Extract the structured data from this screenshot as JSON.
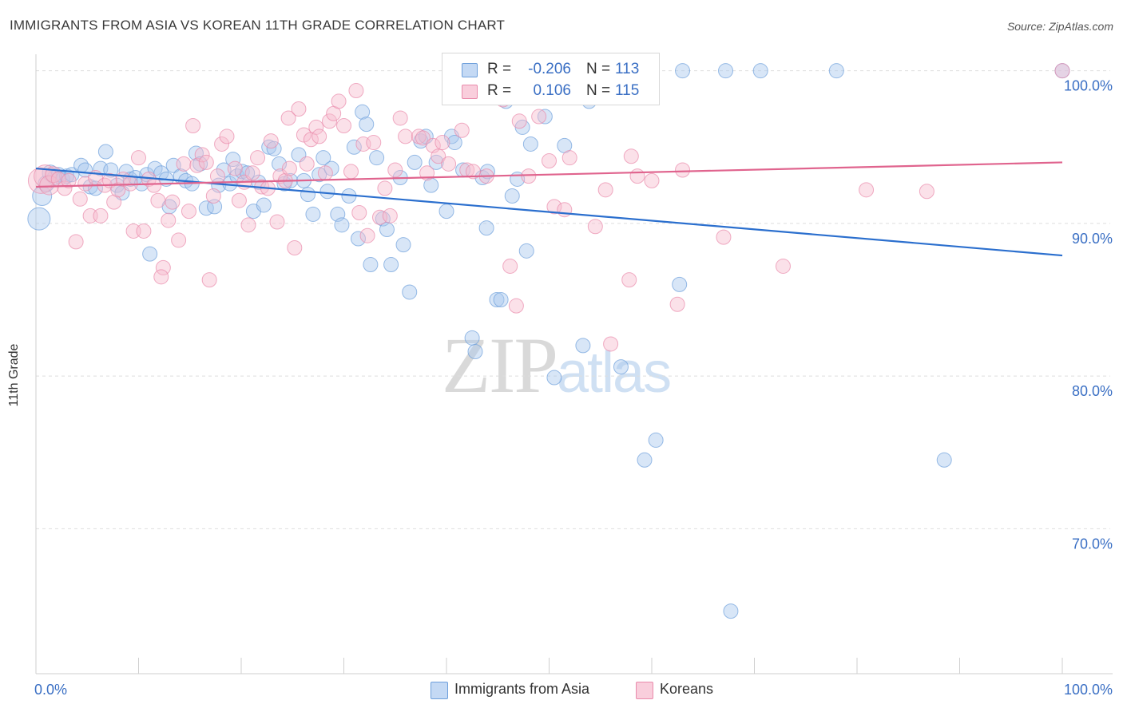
{
  "title": "IMMIGRANTS FROM ASIA VS KOREAN 11TH GRADE CORRELATION CHART",
  "source": "Source: ZipAtlas.com",
  "watermark": {
    "zip": "ZIP",
    "atlas": "atlas"
  },
  "colors": {
    "blue_fill": "#a9c8ee",
    "blue_stroke": "#6d9fdb",
    "blue_line": "#2b6fce",
    "pink_fill": "#f6bccf",
    "pink_stroke": "#e98aab",
    "pink_line": "#e0648e",
    "grid": "#dedede",
    "tick_label": "#3a6fc4"
  },
  "legend": {
    "rows": [
      {
        "r_label": "R =",
        "r_value": "-0.206",
        "n_label": "N =",
        "n_value": "113"
      },
      {
        "r_label": "R =",
        "r_value": "0.106",
        "n_label": "N =",
        "n_value": "115"
      }
    ]
  },
  "bottom_legend": [
    "Immigrants from Asia",
    "Koreans"
  ],
  "chart_data": {
    "type": "scatter",
    "xlabel": "",
    "ylabel": "11th Grade",
    "xlim": [
      0,
      100
    ],
    "ylim": [
      60.5,
      101.5
    ],
    "x_tick_labels": {
      "min": "0.0%",
      "max": "100.0%"
    },
    "y_ticks": [
      100,
      90,
      80,
      70
    ],
    "y_tick_labels": [
      "100.0%",
      "90.0%",
      "80.0%",
      "70.0%"
    ],
    "grid": true,
    "series": [
      {
        "name": "Immigrants from Asia",
        "r": -0.206,
        "n": 113,
        "trend": {
          "x": [
            0,
            100
          ],
          "y": [
            93.6,
            87.9
          ]
        },
        "points": [
          [
            0.3,
            90.3,
            14
          ],
          [
            0.6,
            91.8,
            12
          ],
          [
            1.0,
            92.6,
            10
          ],
          [
            1.4,
            93.3,
            10
          ],
          [
            1.8,
            93.0,
            9
          ],
          [
            2.2,
            93.2,
            9
          ],
          [
            2.6,
            92.9,
            9
          ],
          [
            3.0,
            93.1,
            9
          ],
          [
            3.5,
            93.2,
            9
          ],
          [
            4.4,
            93.8,
            9
          ],
          [
            4.8,
            93.5,
            9
          ],
          [
            5.3,
            92.4,
            9
          ],
          [
            5.8,
            92.3,
            9
          ],
          [
            6.3,
            93.6,
            9
          ],
          [
            6.8,
            94.7,
            9
          ],
          [
            7.3,
            93.5,
            9
          ],
          [
            7.9,
            92.5,
            9
          ],
          [
            8.4,
            92.0,
            9
          ],
          [
            8.8,
            93.4,
            9
          ],
          [
            9.2,
            92.9,
            9
          ],
          [
            9.7,
            93.0,
            9
          ],
          [
            10.3,
            92.6,
            9
          ],
          [
            10.8,
            93.2,
            9
          ],
          [
            11.1,
            88.0,
            9
          ],
          [
            11.6,
            93.6,
            9
          ],
          [
            12.2,
            93.3,
            9
          ],
          [
            12.7,
            92.9,
            9
          ],
          [
            13.0,
            91.1,
            9
          ],
          [
            13.4,
            93.8,
            9
          ],
          [
            14.1,
            93.1,
            9
          ],
          [
            14.6,
            92.8,
            9
          ],
          [
            15.2,
            92.6,
            9
          ],
          [
            15.6,
            94.6,
            9
          ],
          [
            16.0,
            93.9,
            9
          ],
          [
            16.6,
            91.0,
            9
          ],
          [
            17.4,
            91.1,
            9
          ],
          [
            17.8,
            92.5,
            9
          ],
          [
            18.3,
            93.5,
            9
          ],
          [
            18.9,
            92.6,
            9
          ],
          [
            19.2,
            94.2,
            9
          ],
          [
            19.6,
            93.1,
            9
          ],
          [
            20.1,
            93.4,
            9
          ],
          [
            20.6,
            93.3,
            9
          ],
          [
            21.2,
            90.8,
            9
          ],
          [
            21.7,
            92.7,
            9
          ],
          [
            22.2,
            91.2,
            9
          ],
          [
            22.7,
            95.0,
            9
          ],
          [
            23.2,
            94.9,
            9
          ],
          [
            23.7,
            93.9,
            9
          ],
          [
            24.2,
            92.6,
            9
          ],
          [
            24.8,
            92.8,
            9
          ],
          [
            25.6,
            94.5,
            9
          ],
          [
            26.1,
            92.8,
            9
          ],
          [
            26.5,
            91.9,
            9
          ],
          [
            27.0,
            90.6,
            9
          ],
          [
            27.6,
            93.2,
            9
          ],
          [
            28.0,
            94.3,
            9
          ],
          [
            28.4,
            92.1,
            9
          ],
          [
            28.8,
            93.6,
            9
          ],
          [
            29.4,
            90.6,
            9
          ],
          [
            29.8,
            89.9,
            9
          ],
          [
            30.5,
            91.8,
            9
          ],
          [
            31.0,
            95.0,
            9
          ],
          [
            31.4,
            89.0,
            9
          ],
          [
            31.8,
            97.3,
            9
          ],
          [
            32.2,
            96.5,
            9
          ],
          [
            32.6,
            87.3,
            9
          ],
          [
            33.2,
            94.3,
            9
          ],
          [
            33.8,
            90.3,
            9
          ],
          [
            34.2,
            89.6,
            9
          ],
          [
            34.6,
            87.3,
            9
          ],
          [
            35.5,
            93.0,
            9
          ],
          [
            35.8,
            88.6,
            9
          ],
          [
            36.4,
            85.5,
            9
          ],
          [
            36.9,
            94.0,
            9
          ],
          [
            37.5,
            95.4,
            9
          ],
          [
            38.0,
            95.7,
            9
          ],
          [
            38.5,
            92.5,
            9
          ],
          [
            39.0,
            94.0,
            9
          ],
          [
            40.0,
            90.8,
            9
          ],
          [
            40.5,
            95.7,
            9
          ],
          [
            40.8,
            95.3,
            9
          ],
          [
            41.6,
            93.5,
            9
          ],
          [
            42.5,
            82.5,
            9
          ],
          [
            42.8,
            81.6,
            9
          ],
          [
            43.5,
            93.0,
            9
          ],
          [
            43.9,
            89.7,
            9
          ],
          [
            44.0,
            93.4,
            9
          ],
          [
            44.9,
            85.0,
            9
          ],
          [
            45.3,
            85.0,
            9
          ],
          [
            45.8,
            98.0,
            9
          ],
          [
            46.4,
            91.8,
            9
          ],
          [
            46.9,
            92.9,
            9
          ],
          [
            47.4,
            96.3,
            9
          ],
          [
            47.8,
            88.2,
            9
          ],
          [
            48.2,
            95.2,
            9
          ],
          [
            49.6,
            97.0,
            9
          ],
          [
            50.5,
            79.9,
            9
          ],
          [
            51.5,
            95.1,
            9
          ],
          [
            53.3,
            82.0,
            9
          ],
          [
            52.0,
            100.0,
            9
          ],
          [
            53.9,
            98.0,
            9
          ],
          [
            57.0,
            80.6,
            9
          ],
          [
            59.3,
            74.5,
            9
          ],
          [
            60.4,
            75.8,
            9
          ],
          [
            62.7,
            86.0,
            9
          ],
          [
            63.0,
            100.0,
            9
          ],
          [
            67.2,
            100.0,
            9
          ],
          [
            70.6,
            100.0,
            9
          ],
          [
            67.7,
            64.6,
            9
          ],
          [
            78.0,
            100.0,
            9
          ],
          [
            88.5,
            74.5,
            9
          ],
          [
            100.0,
            100.0,
            9
          ]
        ]
      },
      {
        "name": "Koreans",
        "r": 0.106,
        "n": 115,
        "trend": {
          "x": [
            0,
            100
          ],
          "y": [
            92.4,
            94.0
          ]
        },
        "points": [
          [
            0.5,
            92.8,
            16
          ],
          [
            0.9,
            93.1,
            14
          ],
          [
            1.3,
            92.5,
            12
          ],
          [
            1.7,
            93.2,
            10
          ],
          [
            2.2,
            92.9,
            9
          ],
          [
            2.8,
            92.3,
            9
          ],
          [
            3.2,
            92.8,
            9
          ],
          [
            3.9,
            88.8,
            9
          ],
          [
            4.3,
            91.6,
            9
          ],
          [
            4.8,
            92.6,
            9
          ],
          [
            5.3,
            90.5,
            9
          ],
          [
            5.8,
            93.0,
            9
          ],
          [
            6.3,
            90.5,
            9
          ],
          [
            6.7,
            92.5,
            9
          ],
          [
            7.2,
            92.8,
            9
          ],
          [
            7.6,
            91.4,
            9
          ],
          [
            8.0,
            92.2,
            9
          ],
          [
            8.5,
            92.9,
            9
          ],
          [
            9.2,
            92.6,
            9
          ],
          [
            9.5,
            89.5,
            9
          ],
          [
            10.0,
            94.3,
            9
          ],
          [
            10.5,
            89.5,
            9
          ],
          [
            11.0,
            92.9,
            9
          ],
          [
            11.5,
            92.5,
            9
          ],
          [
            11.9,
            91.5,
            9
          ],
          [
            12.4,
            87.1,
            9
          ],
          [
            12.2,
            86.5,
            9
          ],
          [
            12.9,
            90.2,
            9
          ],
          [
            13.3,
            91.4,
            9
          ],
          [
            13.9,
            88.9,
            9
          ],
          [
            14.4,
            93.9,
            9
          ],
          [
            14.9,
            90.8,
            9
          ],
          [
            15.3,
            96.4,
            9
          ],
          [
            15.7,
            93.8,
            9
          ],
          [
            16.2,
            94.5,
            9
          ],
          [
            16.6,
            94.0,
            9
          ],
          [
            16.9,
            86.3,
            9
          ],
          [
            17.3,
            91.8,
            9
          ],
          [
            17.7,
            93.1,
            9
          ],
          [
            18.1,
            95.2,
            9
          ],
          [
            18.6,
            95.7,
            9
          ],
          [
            19.4,
            93.6,
            9
          ],
          [
            19.8,
            91.5,
            9
          ],
          [
            20.3,
            92.7,
            9
          ],
          [
            20.7,
            89.9,
            9
          ],
          [
            21.1,
            93.3,
            9
          ],
          [
            21.6,
            94.3,
            9
          ],
          [
            22.0,
            92.4,
            9
          ],
          [
            22.6,
            92.3,
            9
          ],
          [
            22.9,
            95.4,
            9
          ],
          [
            23.5,
            90.1,
            9
          ],
          [
            23.8,
            93.1,
            9
          ],
          [
            24.3,
            92.8,
            9
          ],
          [
            24.7,
            93.6,
            9
          ],
          [
            24.6,
            96.9,
            9
          ],
          [
            25.2,
            88.4,
            9
          ],
          [
            25.6,
            97.5,
            9
          ],
          [
            26.1,
            95.8,
            9
          ],
          [
            26.4,
            93.9,
            9
          ],
          [
            26.8,
            95.5,
            9
          ],
          [
            27.3,
            96.3,
            9
          ],
          [
            27.6,
            95.7,
            9
          ],
          [
            28.2,
            93.3,
            9
          ],
          [
            28.6,
            96.7,
            9
          ],
          [
            29.0,
            97.2,
            9
          ],
          [
            29.5,
            98.0,
            9
          ],
          [
            30.0,
            96.4,
            9
          ],
          [
            30.7,
            93.4,
            9
          ],
          [
            31.2,
            98.7,
            9
          ],
          [
            31.5,
            90.7,
            9
          ],
          [
            31.9,
            95.2,
            9
          ],
          [
            32.3,
            89.2,
            9
          ],
          [
            32.9,
            95.3,
            9
          ],
          [
            33.5,
            90.4,
            9
          ],
          [
            34.0,
            92.3,
            9
          ],
          [
            34.5,
            90.5,
            9
          ],
          [
            35.0,
            93.5,
            9
          ],
          [
            35.5,
            96.9,
            9
          ],
          [
            36.0,
            95.7,
            9
          ],
          [
            37.3,
            95.7,
            9
          ],
          [
            37.7,
            95.6,
            9
          ],
          [
            38.1,
            93.3,
            9
          ],
          [
            38.7,
            95.1,
            9
          ],
          [
            39.2,
            94.4,
            9
          ],
          [
            39.6,
            95.3,
            9
          ],
          [
            40.2,
            93.9,
            9
          ],
          [
            40.6,
            100.0,
            9
          ],
          [
            41.5,
            96.1,
            9
          ],
          [
            42.0,
            93.5,
            9
          ],
          [
            42.6,
            93.4,
            9
          ],
          [
            43.9,
            93.1,
            9
          ],
          [
            45.5,
            98.1,
            9
          ],
          [
            46.2,
            87.2,
            9
          ],
          [
            46.8,
            84.6,
            9
          ],
          [
            47.1,
            96.7,
            9
          ],
          [
            48.0,
            93.1,
            9
          ],
          [
            49.0,
            97.0,
            9
          ],
          [
            50.0,
            94.1,
            9
          ],
          [
            50.5,
            91.1,
            9
          ],
          [
            51.5,
            90.9,
            9
          ],
          [
            52.0,
            94.3,
            9
          ],
          [
            54.5,
            89.8,
            9
          ],
          [
            55.5,
            92.2,
            9
          ],
          [
            56.0,
            82.1,
            9
          ],
          [
            57.8,
            86.3,
            9
          ],
          [
            58.0,
            94.4,
            9
          ],
          [
            58.6,
            93.1,
            9
          ],
          [
            60.0,
            92.8,
            9
          ],
          [
            62.5,
            84.7,
            9
          ],
          [
            63.0,
            93.5,
            9
          ],
          [
            67.0,
            89.1,
            9
          ],
          [
            72.8,
            87.2,
            9
          ],
          [
            80.9,
            92.2,
            9
          ],
          [
            86.8,
            92.1,
            9
          ],
          [
            100.0,
            100.0,
            9
          ]
        ]
      }
    ]
  }
}
